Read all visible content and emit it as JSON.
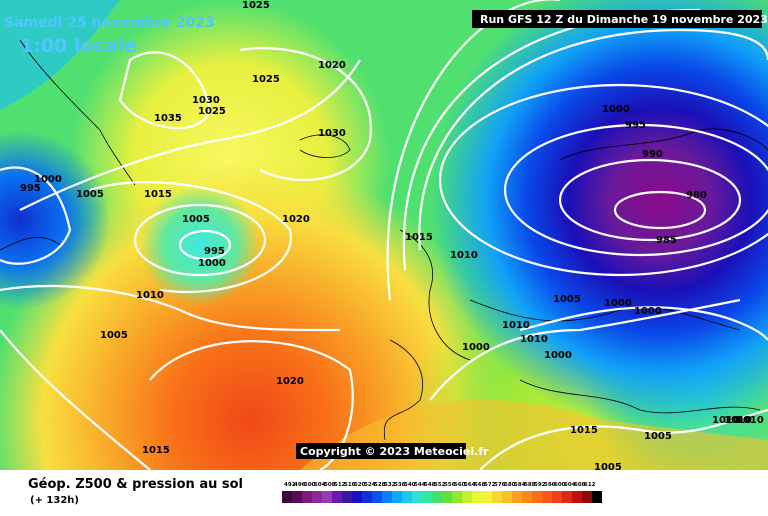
{
  "header": {
    "date_line": "Samedi 25 novembre 2023",
    "time_line": "1:00 locale",
    "run_info": "Run GFS 12 Z du Dimanche 19 novembre 2023"
  },
  "footer": {
    "title": "Géop. Z500 & pression au sol",
    "lead_time": "(+ 132h)",
    "copyright": "Copyright © 2023 Meteociel.fr"
  },
  "color_scale": {
    "labels": [
      "492",
      "496",
      "500",
      "504",
      "508",
      "512",
      "516",
      "520",
      "524",
      "528",
      "532",
      "536",
      "540",
      "544",
      "548",
      "552",
      "556",
      "560",
      "564",
      "568",
      "572",
      "576",
      "580",
      "584",
      "588",
      "592",
      "596",
      "600",
      "604",
      "608",
      "612"
    ],
    "colors": [
      "#3a0a3a",
      "#5a0a5a",
      "#7a1a7a",
      "#8a2a9a",
      "#9a3ab0",
      "#6a1ab0",
      "#3a1aa0",
      "#1a10c0",
      "#1030e0",
      "#0a50f0",
      "#0a80f8",
      "#10a8f8",
      "#20c8f0",
      "#30e0d0",
      "#30e8a0",
      "#40e070",
      "#60e040",
      "#90e830",
      "#c0f030",
      "#e8f830",
      "#f8f040",
      "#f8d830",
      "#f8c028",
      "#f8a020",
      "#f88818",
      "#f87018",
      "#f85818",
      "#f04018",
      "#e02818",
      "#c01010",
      "#900808",
      "#000000"
    ]
  },
  "isobar_labels": [
    "1025",
    "1020",
    "1025",
    "1030",
    "1035",
    "1025",
    "1030",
    "1000",
    "995",
    "1005",
    "1015",
    "1005",
    "995",
    "1000",
    "1020",
    "1010",
    "1005",
    "1015",
    "1010",
    "1020",
    "1015",
    "1000",
    "995",
    "990",
    "980",
    "985",
    "1010",
    "1005",
    "1000",
    "1000",
    "1010",
    "1000",
    "1000",
    "1015",
    "1005",
    "1005",
    "1010",
    "1010",
    "1010"
  ]
}
